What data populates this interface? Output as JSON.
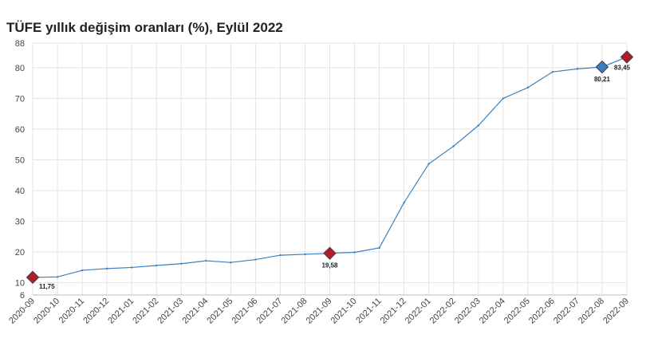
{
  "chart_data": {
    "type": "line",
    "title": "TÜFE yıllık değişim oranları (%), Eylül 2022",
    "xlabel": "",
    "ylabel": "",
    "ylim": [
      6,
      88
    ],
    "yticks": [
      6,
      10,
      20,
      30,
      40,
      50,
      60,
      70,
      80,
      88
    ],
    "grid": true,
    "legend": "none",
    "categories": [
      "2020-09",
      "2020-10",
      "2020-11",
      "2020-12",
      "2021-01",
      "2021-02",
      "2021-03",
      "2021-04",
      "2021-05",
      "2021-06",
      "2021-07",
      "2021-08",
      "2021-09",
      "2021-10",
      "2021-11",
      "2021-12",
      "2022-01",
      "2022-02",
      "2022-03",
      "2022-04",
      "2022-05",
      "2022-06",
      "2022-07",
      "2022-08",
      "2022-09"
    ],
    "series": [
      {
        "values": [
          11.75,
          11.89,
          14.03,
          14.6,
          14.97,
          15.61,
          16.19,
          17.14,
          16.59,
          17.53,
          18.95,
          19.25,
          19.58,
          19.89,
          21.31,
          36.08,
          48.69,
          54.44,
          61.14,
          69.97,
          73.5,
          78.62,
          79.6,
          80.21,
          83.45
        ],
        "color": "#3a7fc1"
      }
    ],
    "annotations": [
      {
        "category": "2020-09",
        "label": "11,75",
        "marker_color": "#b01c2e"
      },
      {
        "category": "2021-09",
        "label": "19,58",
        "marker_color": "#b01c2e"
      },
      {
        "category": "2022-08",
        "label": "80,21",
        "marker_color": "#3a7fc1"
      },
      {
        "category": "2022-09",
        "label": "83,45",
        "marker_color": "#b01c2e"
      }
    ]
  }
}
